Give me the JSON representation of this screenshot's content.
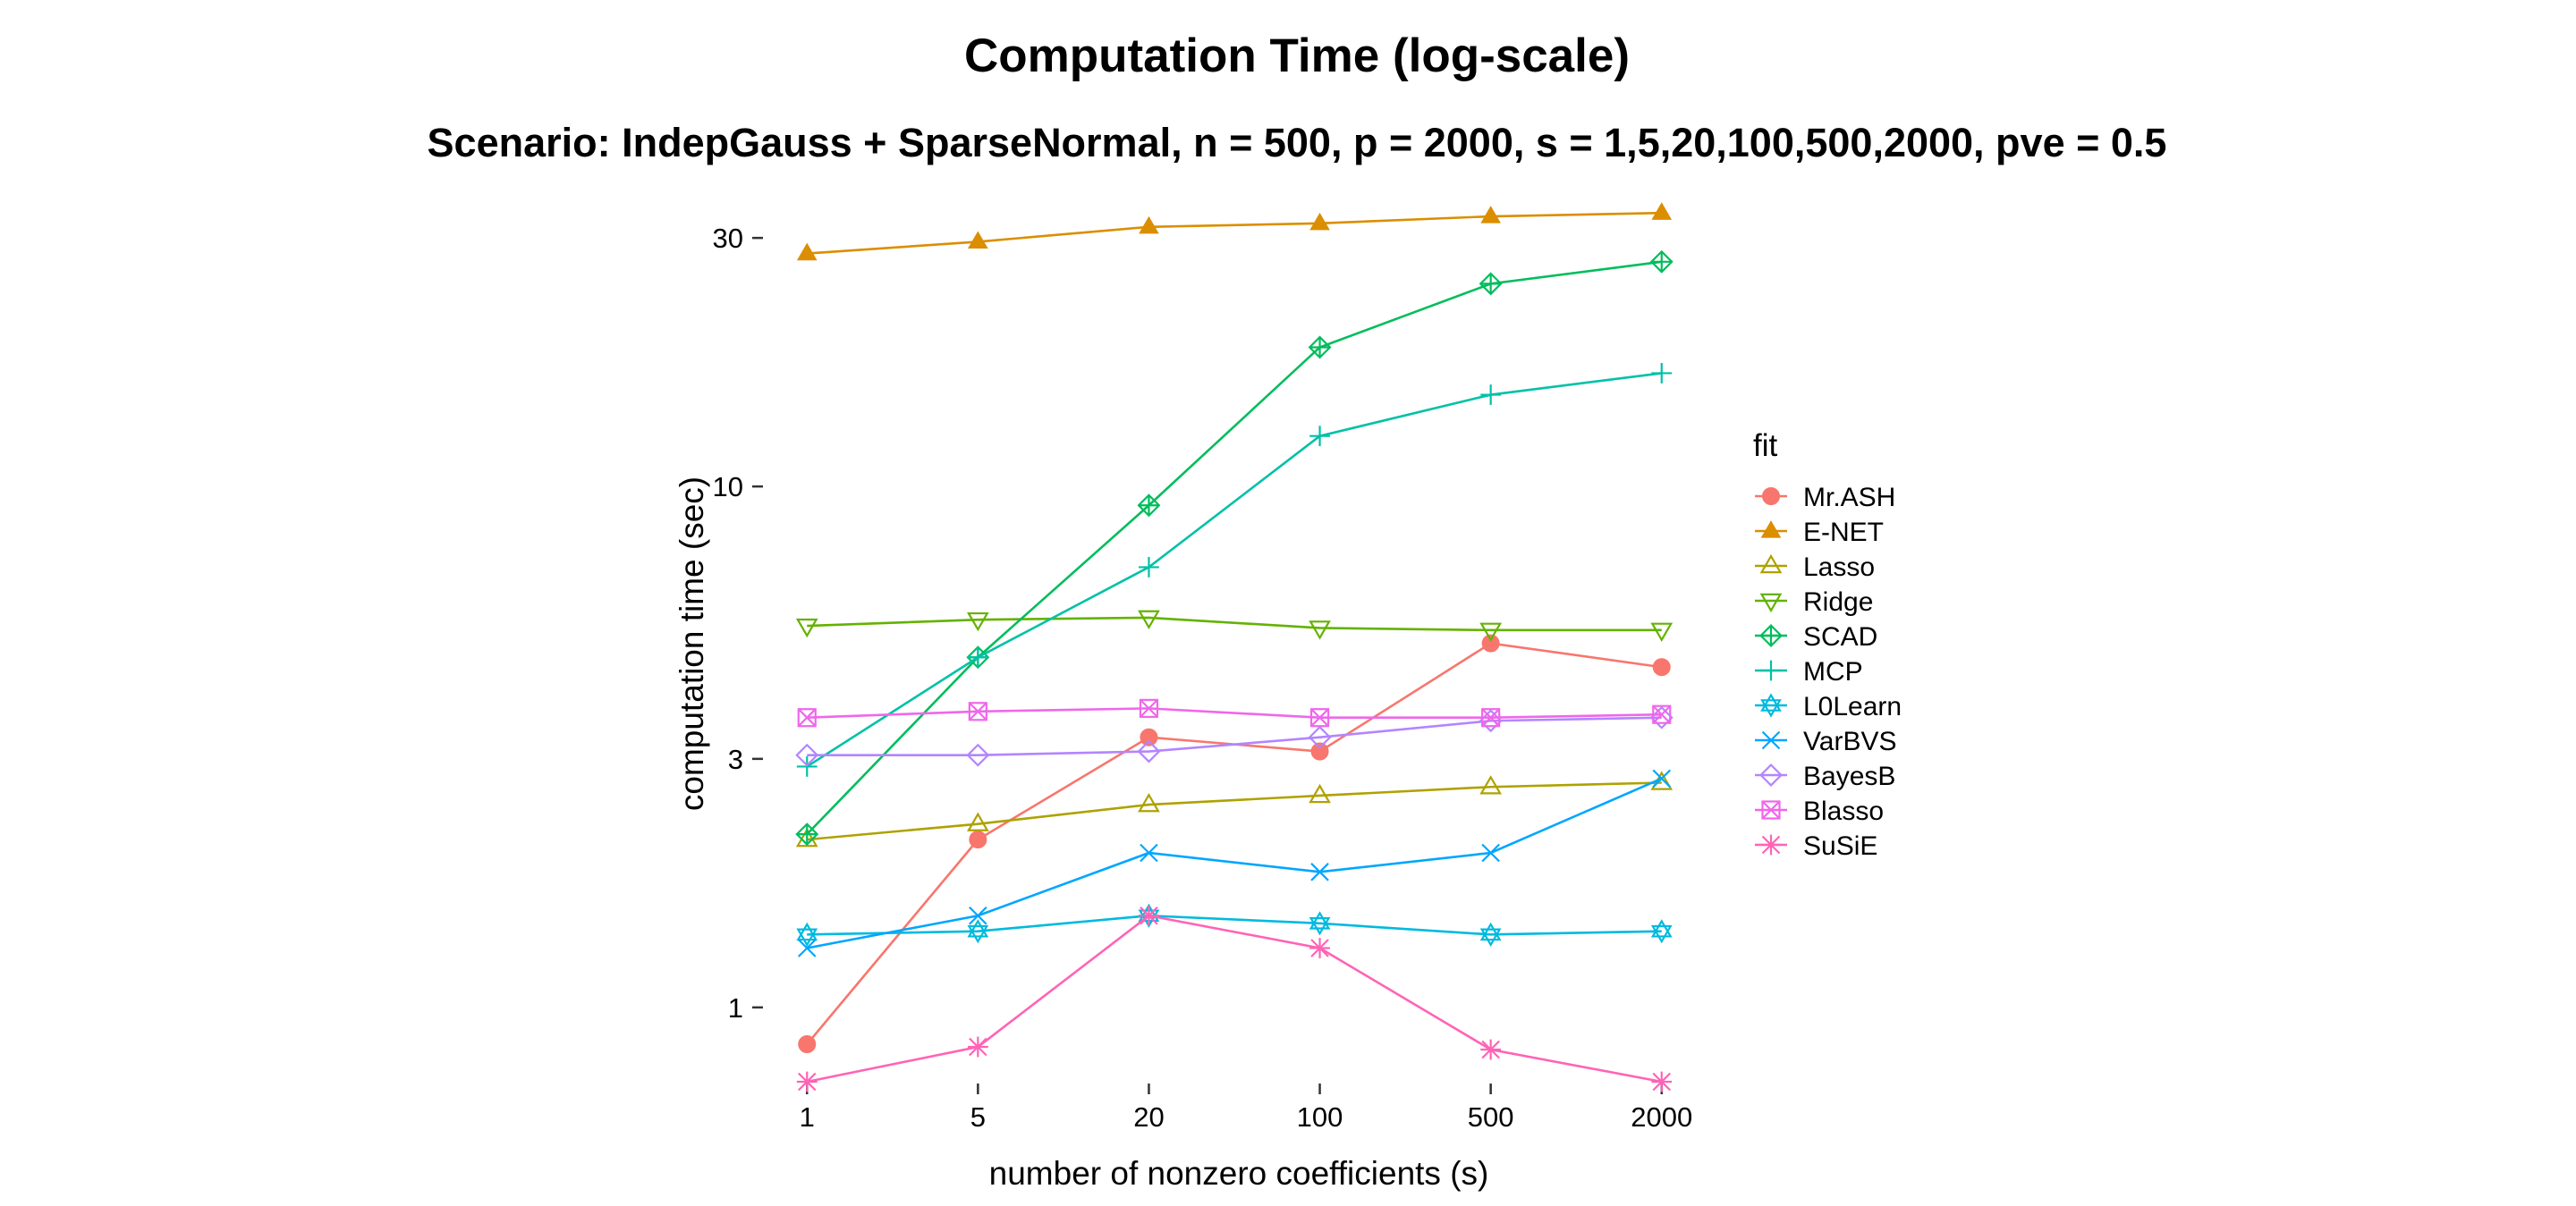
{
  "chart_data": {
    "type": "line",
    "title": "Computation Time (log-scale)",
    "subtitle": "Scenario: IndepGauss + SparseNormal, n = 500, p = 2000, s = 1,5,20,100,500,2000, pve = 0.5",
    "xlabel": "number of nonzero coefficients (s)",
    "ylabel": "computation time (sec)",
    "y_scale": "log",
    "ylim": [
      0.72,
      36
    ],
    "categories": [
      "1",
      "5",
      "20",
      "100",
      "500",
      "2000"
    ],
    "y_ticks": [
      1,
      3,
      10,
      30
    ],
    "y_tick_labels": [
      "1",
      "3",
      "10",
      "30"
    ],
    "grid": false,
    "legend_title": "fit",
    "legend_position": "right",
    "series": [
      {
        "name": "Mr.ASH",
        "color": "#F8766D",
        "marker": "circle-filled",
        "values": [
          0.85,
          2.1,
          3.3,
          3.1,
          5.0,
          4.5
        ]
      },
      {
        "name": "E-NET",
        "color": "#DB8E00",
        "marker": "triangle-filled",
        "values": [
          28,
          29.5,
          31.5,
          32,
          33,
          33.5
        ]
      },
      {
        "name": "Lasso",
        "color": "#AEA200",
        "marker": "triangle-open",
        "values": [
          2.1,
          2.25,
          2.45,
          2.55,
          2.65,
          2.7
        ]
      },
      {
        "name": "Ridge",
        "color": "#64B200",
        "marker": "triangle-down-open",
        "values": [
          5.4,
          5.55,
          5.6,
          5.35,
          5.3,
          5.3
        ]
      },
      {
        "name": "SCAD",
        "color": "#00BD5C",
        "marker": "diamond-plus",
        "values": [
          2.15,
          4.7,
          9.2,
          18.5,
          24.5,
          27
        ]
      },
      {
        "name": "MCP",
        "color": "#00C1A7",
        "marker": "plus",
        "values": [
          2.9,
          4.7,
          7.0,
          12.5,
          15.0,
          16.5
        ]
      },
      {
        "name": "L0Learn",
        "color": "#00BADE",
        "marker": "star-of-david",
        "values": [
          1.38,
          1.4,
          1.5,
          1.45,
          1.38,
          1.4
        ]
      },
      {
        "name": "VarBVS",
        "color": "#00A6FF",
        "marker": "x",
        "values": [
          1.3,
          1.5,
          1.98,
          1.82,
          1.98,
          2.75
        ]
      },
      {
        "name": "BayesB",
        "color": "#B385FF",
        "marker": "diamond-open",
        "values": [
          3.05,
          3.05,
          3.1,
          3.3,
          3.55,
          3.6
        ]
      },
      {
        "name": "Blasso",
        "color": "#EF67EB",
        "marker": "square-cross",
        "values": [
          3.6,
          3.7,
          3.75,
          3.6,
          3.6,
          3.65
        ]
      },
      {
        "name": "SuSiE",
        "color": "#FF63B6",
        "marker": "asterisk",
        "values": [
          0.72,
          0.84,
          1.5,
          1.3,
          0.83,
          0.72
        ]
      }
    ]
  }
}
